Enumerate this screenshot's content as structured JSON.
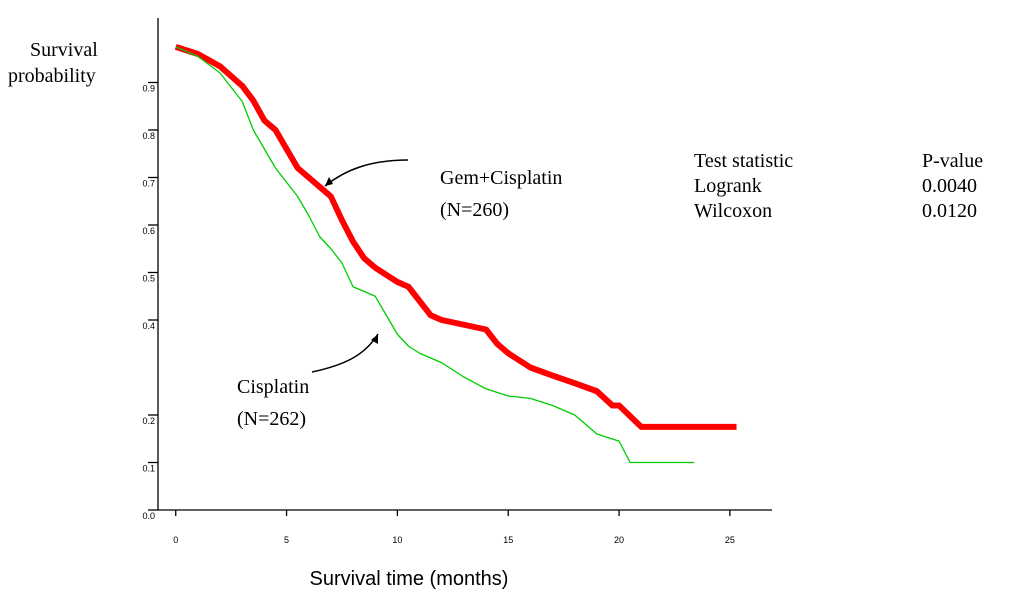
{
  "chart_data": {
    "type": "line",
    "x_label": "Survival time (months)",
    "y_label": [
      "Survival",
      "probability"
    ],
    "xlim": [
      -0.8,
      26.9
    ],
    "ylim": [
      0,
      1.02
    ],
    "xticks": [
      0,
      5,
      10,
      15,
      20,
      25
    ],
    "yticks": [
      {
        "value": 0,
        "label": "0.0"
      },
      0.1,
      0.2,
      0.4,
      0.5,
      0.6,
      0.7,
      0.8,
      0.9
    ],
    "series": [
      {
        "name": "Gem+Cisplatin",
        "color": "#ff0000",
        "x": [
          0,
          1,
          2,
          3,
          3.5,
          4,
          4.5,
          5,
          5.5,
          6,
          6.5,
          7,
          7.5,
          8,
          8.5,
          9,
          10,
          10.5,
          11,
          11.5,
          12,
          13,
          14,
          14.5,
          15,
          16,
          17,
          18,
          19,
          19.7,
          20,
          21,
          25.3
        ],
        "values": [
          0.975,
          0.96,
          0.934,
          0.893,
          0.862,
          0.82,
          0.8,
          0.76,
          0.72,
          0.7,
          0.68,
          0.66,
          0.61,
          0.565,
          0.53,
          0.51,
          0.48,
          0.47,
          0.44,
          0.41,
          0.4,
          0.39,
          0.38,
          0.35,
          0.33,
          0.3,
          0.283,
          0.267,
          0.25,
          0.22,
          0.22,
          0.175,
          0.175
        ]
      },
      {
        "name": "Cisplatin",
        "color": "#00cc00",
        "x": [
          0,
          1,
          2,
          3,
          3.5,
          4,
          4.5,
          5,
          5.5,
          6,
          6.5,
          7,
          7.5,
          8,
          8.5,
          9,
          9.5,
          10,
          10.5,
          11,
          12,
          13,
          14,
          15,
          16,
          17,
          18,
          19,
          20,
          20.5,
          23.4
        ],
        "values": [
          0.975,
          0.955,
          0.92,
          0.86,
          0.8,
          0.76,
          0.72,
          0.69,
          0.66,
          0.62,
          0.575,
          0.55,
          0.52,
          0.47,
          0.46,
          0.45,
          0.41,
          0.37,
          0.345,
          0.33,
          0.31,
          0.28,
          0.255,
          0.24,
          0.235,
          0.22,
          0.2,
          0.16,
          0.145,
          0.1,
          0.1
        ]
      }
    ],
    "annotations": [
      {
        "lines": [
          "Gem+Cisplatin",
          "(N=260)"
        ]
      },
      {
        "lines": [
          "Cisplatin",
          "(N=262)"
        ]
      }
    ],
    "stats_table": {
      "header": [
        "Test statistic",
        "P-value"
      ],
      "rows": [
        [
          "Logrank",
          "0.0040"
        ],
        [
          "Wilcoxon",
          "0.0120"
        ]
      ]
    }
  }
}
